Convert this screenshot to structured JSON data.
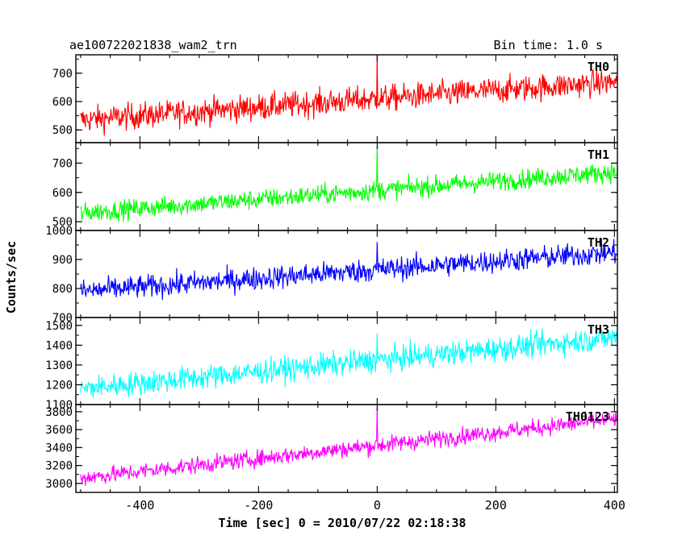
{
  "header": {
    "title": "ae100722021838_wam2_trn",
    "bin_time": "Bin time: 1.0 s"
  },
  "axes": {
    "ylabel": "Counts/sec",
    "xlabel": "Time [sec] 0 = 2010/07/22 02:18:38"
  },
  "chart_data": {
    "type": "line",
    "title": "ae100722021838_wam2_trn",
    "xlabel": "Time [sec] 0 = 2010/07/22 02:18:38",
    "ylabel": "Counts/sec",
    "xlim": [
      -508,
      405
    ],
    "xticks": [
      -400,
      -200,
      0,
      200,
      400
    ],
    "grid": false,
    "panels": [
      {
        "name": "TH0",
        "color": "#ff0000",
        "ylim": [
          455,
          765
        ],
        "yticks": [
          500,
          600,
          700
        ],
        "trend_start": 535,
        "trend_end": 670,
        "noise": 42,
        "spike": {
          "x": 0,
          "y": 765
        },
        "x_sample": [
          -500,
          -400,
          -300,
          -200,
          -100,
          0,
          100,
          200,
          300,
          400
        ],
        "y_sample": [
          537,
          552,
          567,
          582,
          597,
          612,
          627,
          642,
          657,
          670
        ]
      },
      {
        "name": "TH1",
        "color": "#00ff00",
        "ylim": [
          470,
          770
        ],
        "yticks": [
          500,
          600,
          700
        ],
        "trend_start": 530,
        "trend_end": 670,
        "noise": 30,
        "spike": {
          "x": 0,
          "y": 760
        },
        "x_sample": [
          -500,
          -400,
          -300,
          -200,
          -100,
          0,
          100,
          200,
          300,
          400
        ],
        "y_sample": [
          532,
          547,
          563,
          578,
          594,
          609,
          625,
          640,
          656,
          670
        ]
      },
      {
        "name": "TH2",
        "color": "#0000ff",
        "ylim": [
          700,
          1000
        ],
        "yticks": [
          700,
          800,
          900,
          1000
        ],
        "trend_start": 790,
        "trend_end": 925,
        "noise": 36,
        "spike": {
          "x": 0,
          "y": 960
        },
        "x_sample": [
          -500,
          -400,
          -300,
          -200,
          -100,
          0,
          100,
          200,
          300,
          400
        ],
        "y_sample": [
          792,
          807,
          822,
          837,
          852,
          867,
          882,
          897,
          912,
          925
        ]
      },
      {
        "name": "TH3",
        "color": "#00ffff",
        "ylim": [
          1100,
          1540
        ],
        "yticks": [
          1100,
          1200,
          1300,
          1400,
          1500
        ],
        "trend_start": 1180,
        "trend_end": 1440,
        "noise": 55,
        "spike": {
          "x": 0,
          "y": 1460
        },
        "x_sample": [
          -500,
          -400,
          -300,
          -200,
          -100,
          0,
          100,
          200,
          300,
          400
        ],
        "y_sample": [
          1184,
          1212,
          1241,
          1270,
          1299,
          1328,
          1357,
          1386,
          1415,
          1440
        ]
      },
      {
        "name": "TH0123",
        "color": "#ff00ff",
        "ylim": [
          2900,
          3880
        ],
        "yticks": [
          3000,
          3200,
          3400,
          3600,
          3800
        ],
        "trend_start": 3060,
        "trend_end": 3720,
        "noise": 85,
        "spike": {
          "x": 0,
          "y": 3850
        },
        "x_sample": [
          -500,
          -400,
          -300,
          -200,
          -100,
          0,
          100,
          200,
          300,
          400
        ],
        "y_sample": [
          3070,
          3142,
          3215,
          3289,
          3362,
          3436,
          3510,
          3583,
          3657,
          3720
        ]
      }
    ]
  }
}
